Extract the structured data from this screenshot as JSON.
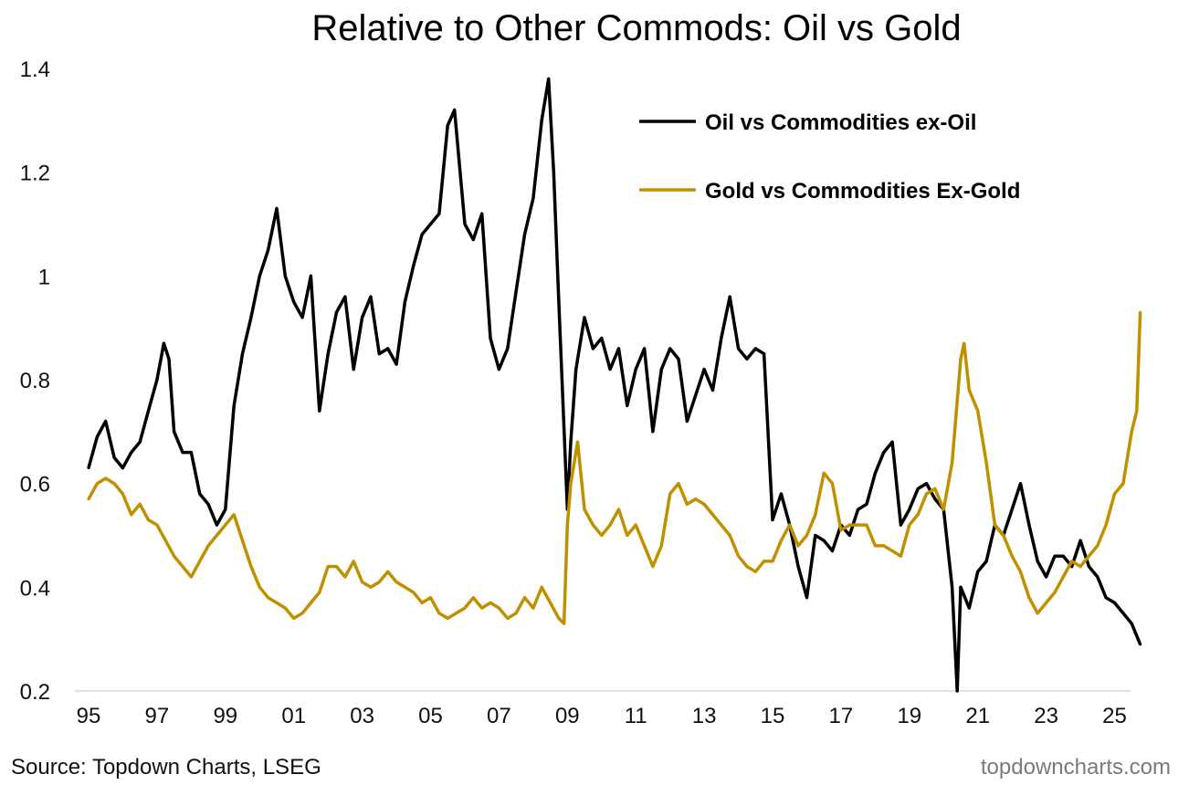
{
  "chart_data": {
    "type": "line",
    "title": "Relative to Other Commods: Oil vs Gold",
    "xlabel": "",
    "ylabel": "",
    "ylim": [
      0.2,
      1.4
    ],
    "xlim": [
      1995,
      2025.8
    ],
    "grid": false,
    "yticks": [
      0.2,
      0.4,
      0.6,
      0.8,
      1,
      1.2,
      1.4
    ],
    "ytick_labels": [
      "0.2",
      "0.4",
      "0.6",
      "0.8",
      "1",
      "1.2",
      "1.4"
    ],
    "xticks": [
      1995,
      1997,
      1999,
      2001,
      2003,
      2005,
      2007,
      2009,
      2011,
      2013,
      2015,
      2017,
      2019,
      2021,
      2023,
      2025
    ],
    "xtick_labels": [
      "95",
      "97",
      "99",
      "01",
      "03",
      "05",
      "07",
      "09",
      "11",
      "13",
      "15",
      "17",
      "19",
      "21",
      "23",
      "25"
    ],
    "legend_position": "top-right",
    "source": "Source: Topdown Charts, LSEG",
    "watermark": "topdowncharts.com",
    "series": [
      {
        "name": "Oil vs Commodities ex-Oil",
        "color": "#000000",
        "x": [
          1995.0,
          1995.25,
          1995.5,
          1995.75,
          1996.0,
          1996.25,
          1996.5,
          1996.75,
          1997.0,
          1997.2,
          1997.35,
          1997.5,
          1997.75,
          1998.0,
          1998.25,
          1998.5,
          1998.75,
          1999.0,
          1999.25,
          1999.5,
          1999.75,
          2000.0,
          2000.25,
          2000.5,
          2000.75,
          2001.0,
          2001.25,
          2001.5,
          2001.75,
          2002.0,
          2002.25,
          2002.5,
          2002.75,
          2003.0,
          2003.25,
          2003.5,
          2003.75,
          2004.0,
          2004.25,
          2004.5,
          2004.75,
          2005.0,
          2005.25,
          2005.5,
          2005.7,
          2006.0,
          2006.25,
          2006.5,
          2006.75,
          2007.0,
          2007.25,
          2007.5,
          2007.75,
          2008.0,
          2008.25,
          2008.45,
          2008.6,
          2008.75,
          2009.0,
          2009.1,
          2009.25,
          2009.5,
          2009.75,
          2010.0,
          2010.25,
          2010.5,
          2010.75,
          2011.0,
          2011.25,
          2011.5,
          2011.75,
          2012.0,
          2012.25,
          2012.5,
          2012.75,
          2013.0,
          2013.25,
          2013.5,
          2013.75,
          2014.0,
          2014.25,
          2014.5,
          2014.75,
          2015.0,
          2015.25,
          2015.5,
          2015.75,
          2016.0,
          2016.25,
          2016.5,
          2016.75,
          2017.0,
          2017.25,
          2017.5,
          2017.75,
          2018.0,
          2018.25,
          2018.5,
          2018.75,
          2019.0,
          2019.25,
          2019.5,
          2019.75,
          2020.0,
          2020.25,
          2020.4,
          2020.5,
          2020.75,
          2021.0,
          2021.25,
          2021.5,
          2021.75,
          2022.0,
          2022.25,
          2022.5,
          2022.75,
          2023.0,
          2023.25,
          2023.5,
          2023.75,
          2024.0,
          2024.25,
          2024.5,
          2024.75,
          2025.0,
          2025.25,
          2025.5,
          2025.75
        ],
        "values": [
          0.63,
          0.69,
          0.72,
          0.65,
          0.63,
          0.66,
          0.68,
          0.74,
          0.8,
          0.87,
          0.84,
          0.7,
          0.66,
          0.66,
          0.58,
          0.56,
          0.52,
          0.55,
          0.75,
          0.85,
          0.92,
          1.0,
          1.05,
          1.13,
          1.0,
          0.95,
          0.92,
          1.0,
          0.74,
          0.85,
          0.93,
          0.96,
          0.82,
          0.92,
          0.96,
          0.85,
          0.86,
          0.83,
          0.95,
          1.02,
          1.08,
          1.1,
          1.12,
          1.29,
          1.32,
          1.1,
          1.07,
          1.12,
          0.88,
          0.82,
          0.86,
          0.97,
          1.08,
          1.15,
          1.3,
          1.38,
          1.2,
          0.95,
          0.55,
          0.68,
          0.82,
          0.92,
          0.86,
          0.88,
          0.82,
          0.86,
          0.75,
          0.82,
          0.86,
          0.7,
          0.82,
          0.86,
          0.84,
          0.72,
          0.77,
          0.82,
          0.78,
          0.88,
          0.96,
          0.86,
          0.84,
          0.86,
          0.85,
          0.53,
          0.58,
          0.52,
          0.44,
          0.38,
          0.5,
          0.49,
          0.47,
          0.52,
          0.5,
          0.55,
          0.56,
          0.62,
          0.66,
          0.68,
          0.52,
          0.55,
          0.59,
          0.6,
          0.57,
          0.55,
          0.4,
          0.2,
          0.4,
          0.36,
          0.43,
          0.45,
          0.52,
          0.5,
          0.55,
          0.6,
          0.52,
          0.45,
          0.42,
          0.46,
          0.46,
          0.44,
          0.49,
          0.44,
          0.42,
          0.38,
          0.37,
          0.35,
          0.33,
          0.29
        ]
      },
      {
        "name": "Gold vs Commodities Ex-Gold",
        "color": "#BF9000",
        "x": [
          1995.0,
          1995.25,
          1995.5,
          1995.75,
          1996.0,
          1996.25,
          1996.5,
          1996.75,
          1997.0,
          1997.25,
          1997.5,
          1997.75,
          1998.0,
          1998.25,
          1998.5,
          1998.75,
          1999.0,
          1999.25,
          1999.5,
          1999.75,
          2000.0,
          2000.25,
          2000.5,
          2000.75,
          2001.0,
          2001.25,
          2001.5,
          2001.75,
          2002.0,
          2002.25,
          2002.5,
          2002.75,
          2003.0,
          2003.25,
          2003.5,
          2003.75,
          2004.0,
          2004.25,
          2004.5,
          2004.75,
          2005.0,
          2005.25,
          2005.5,
          2005.75,
          2006.0,
          2006.25,
          2006.5,
          2006.75,
          2007.0,
          2007.25,
          2007.5,
          2007.75,
          2008.0,
          2008.25,
          2008.5,
          2008.75,
          2008.9,
          2009.0,
          2009.1,
          2009.3,
          2009.5,
          2009.75,
          2010.0,
          2010.25,
          2010.5,
          2010.75,
          2011.0,
          2011.25,
          2011.5,
          2011.75,
          2012.0,
          2012.25,
          2012.5,
          2012.75,
          2013.0,
          2013.25,
          2013.5,
          2013.75,
          2014.0,
          2014.25,
          2014.5,
          2014.75,
          2015.0,
          2015.25,
          2015.5,
          2015.75,
          2016.0,
          2016.25,
          2016.5,
          2016.75,
          2017.0,
          2017.25,
          2017.5,
          2017.75,
          2018.0,
          2018.25,
          2018.5,
          2018.75,
          2019.0,
          2019.25,
          2019.5,
          2019.75,
          2020.0,
          2020.25,
          2020.5,
          2020.6,
          2020.75,
          2021.0,
          2021.25,
          2021.5,
          2021.75,
          2022.0,
          2022.25,
          2022.5,
          2022.75,
          2023.0,
          2023.25,
          2023.5,
          2023.75,
          2024.0,
          2024.25,
          2024.5,
          2024.75,
          2025.0,
          2025.25,
          2025.5,
          2025.65,
          2025.75
        ],
        "values": [
          0.57,
          0.6,
          0.61,
          0.6,
          0.58,
          0.54,
          0.56,
          0.53,
          0.52,
          0.49,
          0.46,
          0.44,
          0.42,
          0.45,
          0.48,
          0.5,
          0.52,
          0.54,
          0.49,
          0.44,
          0.4,
          0.38,
          0.37,
          0.36,
          0.34,
          0.35,
          0.37,
          0.39,
          0.44,
          0.44,
          0.42,
          0.45,
          0.41,
          0.4,
          0.41,
          0.43,
          0.41,
          0.4,
          0.39,
          0.37,
          0.38,
          0.35,
          0.34,
          0.35,
          0.36,
          0.38,
          0.36,
          0.37,
          0.36,
          0.34,
          0.35,
          0.38,
          0.36,
          0.4,
          0.37,
          0.34,
          0.33,
          0.52,
          0.6,
          0.68,
          0.55,
          0.52,
          0.5,
          0.52,
          0.55,
          0.5,
          0.52,
          0.48,
          0.44,
          0.48,
          0.58,
          0.6,
          0.56,
          0.57,
          0.56,
          0.54,
          0.52,
          0.5,
          0.46,
          0.44,
          0.43,
          0.45,
          0.45,
          0.49,
          0.52,
          0.48,
          0.5,
          0.54,
          0.62,
          0.6,
          0.51,
          0.52,
          0.52,
          0.52,
          0.48,
          0.48,
          0.47,
          0.46,
          0.52,
          0.54,
          0.58,
          0.59,
          0.55,
          0.64,
          0.84,
          0.87,
          0.78,
          0.74,
          0.64,
          0.52,
          0.5,
          0.46,
          0.43,
          0.38,
          0.35,
          0.37,
          0.39,
          0.42,
          0.45,
          0.44,
          0.46,
          0.48,
          0.52,
          0.58,
          0.6,
          0.7,
          0.74,
          0.93
        ]
      }
    ]
  }
}
